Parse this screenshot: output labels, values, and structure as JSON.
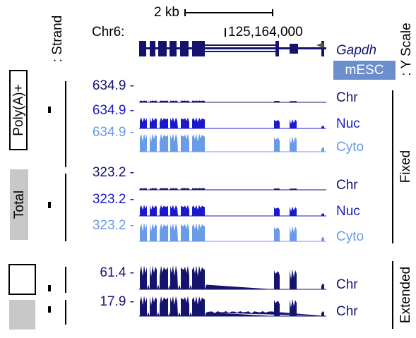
{
  "header": {
    "strand_label": ": Strand",
    "scale_label": "2 kb",
    "chrom": "Chr6:",
    "coordinate": "125,164,000",
    "gene": "Gapdh",
    "cell": "mESC",
    "y_scale_label": ": Y Scale"
  },
  "groups": [
    {
      "label": "Poly(A)+",
      "tracks": [
        {
          "scale": "634.9 -",
          "name": "Chr"
        },
        {
          "scale": "634.9 -",
          "name": "Nuc"
        },
        {
          "scale": "634.9 -",
          "name": "Cyto"
        }
      ]
    },
    {
      "label": "Total",
      "tracks": [
        {
          "scale": "323.2 -",
          "name": "Chr"
        },
        {
          "scale": "323.2 -",
          "name": "Nuc"
        },
        {
          "scale": "323.2 -",
          "name": "Cyto"
        }
      ]
    },
    {
      "tracks": [
        {
          "scale": "61.4 -",
          "name": "Chr"
        }
      ]
    },
    {
      "tracks": [
        {
          "scale": "17.9 -",
          "name": "Chr"
        }
      ]
    }
  ],
  "side_labels": {
    "fixed": "Fixed",
    "extended": "Extended"
  }
}
